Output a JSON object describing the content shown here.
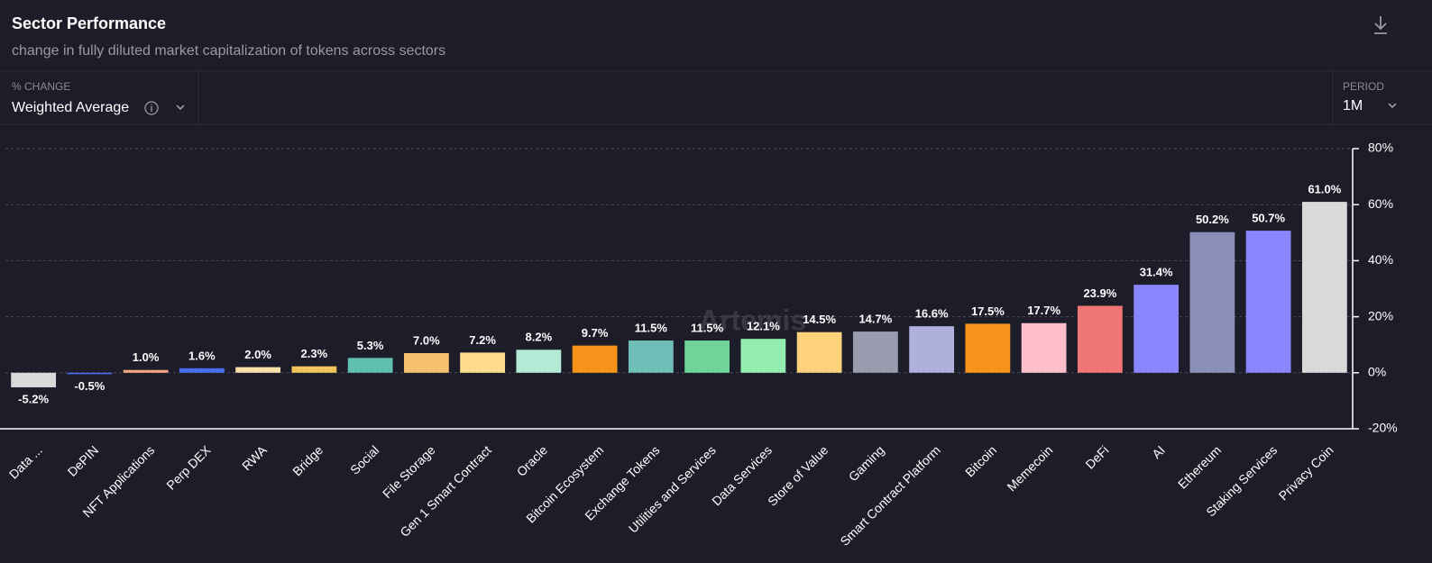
{
  "chart_data": {
    "type": "bar",
    "title": "Sector Performance",
    "subtitle": "change in fully diluted market capitalization of tokens across sectors",
    "watermark": "Artemis",
    "categories": [
      "Data ...",
      "DePIN",
      "NFT Applications",
      "Perp DEX",
      "RWA",
      "Bridge",
      "Social",
      "File Storage",
      "Gen 1 Smart Contract",
      "Oracle",
      "Bitcoin Ecosystem",
      "Exchange Tokens",
      "Utilities and Services",
      "Data Services",
      "Store of Value",
      "Gaming",
      "Smart Contract Platform",
      "Bitcoin",
      "Memecoin",
      "DeFi",
      "AI",
      "Ethereum",
      "Staking Services",
      "Privacy Coin"
    ],
    "values": [
      -5.2,
      -0.5,
      1.0,
      1.6,
      2.0,
      2.3,
      5.3,
      7.0,
      7.2,
      8.2,
      9.7,
      11.5,
      11.5,
      12.1,
      14.5,
      14.7,
      16.6,
      17.5,
      17.7,
      23.9,
      31.4,
      50.2,
      50.7,
      61.0
    ],
    "value_labels": [
      "-5.2%",
      "-0.5%",
      "1.0%",
      "1.6%",
      "2.0%",
      "2.3%",
      "5.3%",
      "7.0%",
      "7.2%",
      "8.2%",
      "9.7%",
      "11.5%",
      "11.5%",
      "12.1%",
      "14.5%",
      "14.7%",
      "16.6%",
      "17.5%",
      "17.7%",
      "23.9%",
      "31.4%",
      "50.2%",
      "50.7%",
      "61.0%"
    ],
    "colors": [
      "#d9d9d9",
      "#4a6cf7",
      "#f4a582",
      "#4c6ef5",
      "#fde0a8",
      "#f2c55c",
      "#5fbfb0",
      "#f7c26e",
      "#fddc8f",
      "#b4e9d6",
      "#f7931a",
      "#6fbfb8",
      "#6fd495",
      "#93eeb0",
      "#fdd27a",
      "#9b9bb0",
      "#b0b0dc",
      "#f7931a",
      "#ffc0cb",
      "#f07575",
      "#8a86ff",
      "#8a8fb5",
      "#8a86ff",
      "#d9d9d9"
    ],
    "ylim": [
      -20,
      80
    ],
    "yticks": [
      {
        "value": -20,
        "label": "-20%"
      },
      {
        "value": 0,
        "label": "0%"
      },
      {
        "value": 20,
        "label": "20%"
      },
      {
        "value": 40,
        "label": "40%"
      },
      {
        "value": 60,
        "label": "60%"
      },
      {
        "value": 80,
        "label": "80%"
      }
    ],
    "grid": true
  },
  "controls": {
    "metric_label": "% CHANGE",
    "metric": "Weighted Average",
    "period_label": "PERIOD",
    "period": "1M"
  }
}
